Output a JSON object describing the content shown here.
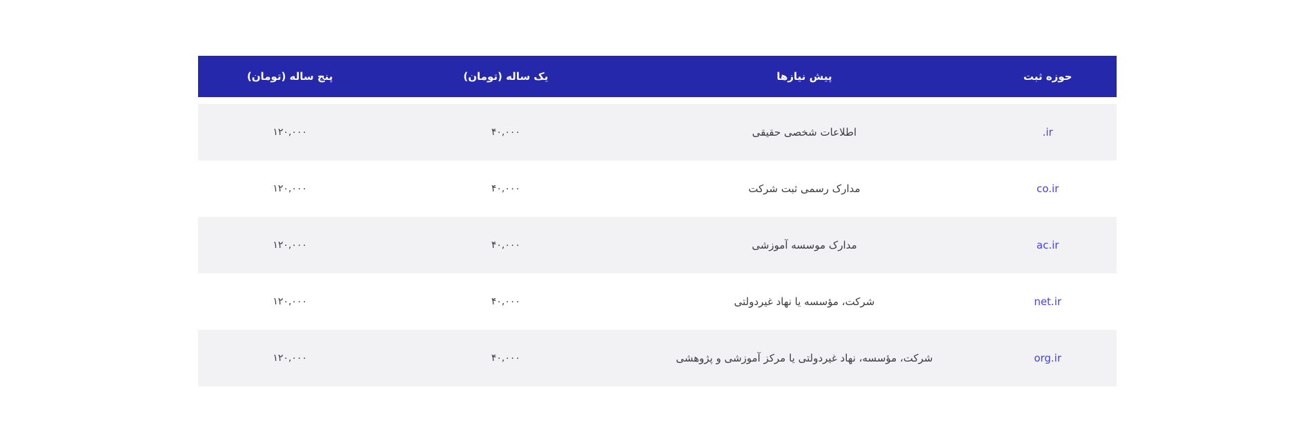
{
  "colors": {
    "header_bg": "#2528ab",
    "header_text": "#ffffff",
    "stripe_row_bg": "#f2f2f4",
    "cell_text": "#3b3b42",
    "domain_link": "#4040f0",
    "page_bg": "#ffffff"
  },
  "table": {
    "direction": "rtl",
    "headers": {
      "domain": "حوزه ثبت",
      "prerequisites": "پیش نیازها",
      "one_year": "یک ساله (تومان)",
      "five_year": "پنج ساله (تومان)"
    },
    "rows": [
      {
        "domain": ".ir",
        "prerequisites": "اطلاعات شخصی حقیقی",
        "one_year": "۴۰,۰۰۰",
        "five_year": "۱۲۰,۰۰۰"
      },
      {
        "domain": "co.ir",
        "prerequisites": "مدارک رسمی ثبت شرکت",
        "one_year": "۴۰,۰۰۰",
        "five_year": "۱۲۰,۰۰۰"
      },
      {
        "domain": "ac.ir",
        "prerequisites": "مدارک موسسه آموزشی",
        "one_year": "۴۰,۰۰۰",
        "five_year": "۱۲۰,۰۰۰"
      },
      {
        "domain": "net.ir",
        "prerequisites": "شرکت، مؤسسه یا نهاد غیردولتی",
        "one_year": "۴۰,۰۰۰",
        "five_year": "۱۲۰,۰۰۰"
      },
      {
        "domain": "org.ir",
        "prerequisites": "شرکت، مؤسسه، نهاد غیردولتی یا مرکز آموزشی و پژوهشی",
        "one_year": "۴۰,۰۰۰",
        "five_year": "۱۲۰,۰۰۰"
      }
    ]
  }
}
